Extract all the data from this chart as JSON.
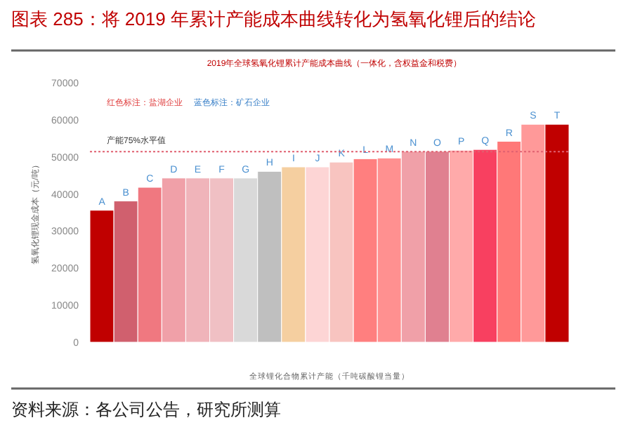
{
  "chart_data": {
    "type": "bar",
    "title": "图表 285：将 2019 年累计产能成本曲线转化为氢氧化锂后的结论",
    "subtitle": "2019年全球氢氧化锂累计产能成本曲线（一体化，含权益金和税费）",
    "ylabel": "氢氧化锂现金成本（元/吨）",
    "xlabel": "全球锂化合物累计产能（千吨碳酸锂当量）",
    "categories": [
      "A",
      "B",
      "C",
      "D",
      "E",
      "F",
      "G",
      "H",
      "I",
      "J",
      "K",
      "L",
      "M",
      "N",
      "O",
      "P",
      "Q",
      "R",
      "S",
      "T"
    ],
    "values": [
      35600,
      38100,
      41800,
      44300,
      44300,
      44300,
      44300,
      46100,
      47300,
      47300,
      48600,
      49500,
      49700,
      51500,
      51500,
      51800,
      52000,
      54200,
      58800,
      58800
    ],
    "colors": [
      "#c00000",
      "#d0606e",
      "#f07880",
      "#f0a0a8",
      "#f0b4ba",
      "#f0c0c4",
      "#d9d9d9",
      "#bfbfbf",
      "#f5cfa0",
      "#fdd5d5",
      "#f8c4c0",
      "#ff7f7f",
      "#ff9090",
      "#f0a0a8",
      "#e08090",
      "#ffaaaa",
      "#f84060",
      "#ff7878",
      "#ff9999",
      "#c00000"
    ],
    "ylim": [
      0,
      70000
    ],
    "yticks": [
      0,
      10000,
      20000,
      30000,
      40000,
      50000,
      60000,
      70000
    ],
    "ref_lines": [
      {
        "axis": "y",
        "value": 51400,
        "label": "产能75%水平值",
        "color": "#e06070",
        "line_style": "dotted"
      }
    ],
    "annotations": [
      "红色标注：盐湖企业",
      "蓝色标注：矿石企业",
      "资料来源：各公司公告，研究所测算"
    ]
  }
}
